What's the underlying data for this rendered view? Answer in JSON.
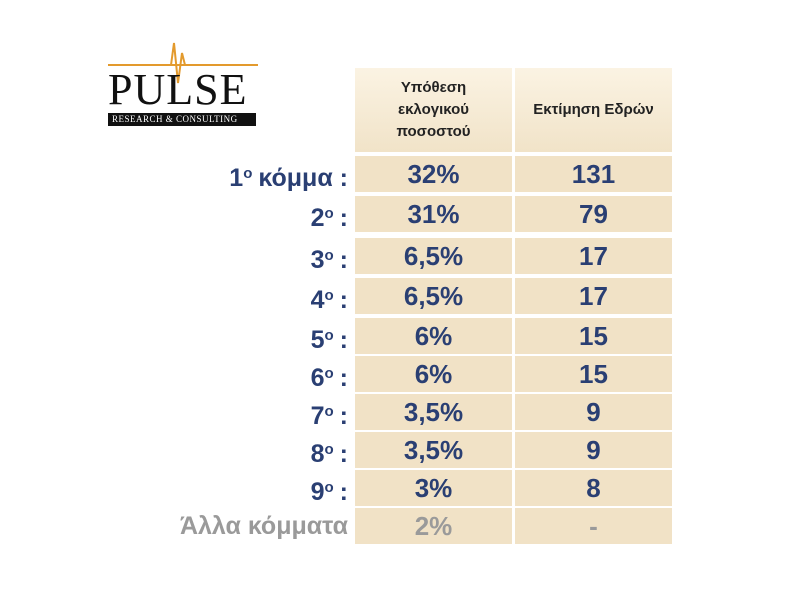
{
  "logo": {
    "name": "PULSE",
    "tagline": "RESEARCH & CONSULTING"
  },
  "table": {
    "headers": [
      "Υπόθεση εκλογικού ποσοστού",
      "Εκτίμηση Εδρών"
    ],
    "rows": [
      {
        "label": {
          "num": "1",
          "sup": "ο",
          "rest": "κόμμα :"
        },
        "cells": [
          "32%",
          "131"
        ]
      },
      {
        "label": {
          "num": "2",
          "sup": "ο",
          "rest": ":"
        },
        "cells": [
          "31%",
          "79"
        ]
      },
      {
        "label": {
          "num": "3",
          "sup": "ο",
          "rest": ":"
        },
        "cells": [
          "6,5%",
          "17"
        ]
      },
      {
        "label": {
          "num": "4",
          "sup": "ο",
          "rest": ":"
        },
        "cells": [
          "6,5%",
          "17"
        ]
      },
      {
        "label": {
          "num": "5",
          "sup": "ο",
          "rest": ":"
        },
        "cells": [
          "6%",
          "15"
        ]
      },
      {
        "label": {
          "num": "6",
          "sup": "ο",
          "rest": ":"
        },
        "cells": [
          "6%",
          "15"
        ]
      },
      {
        "label": {
          "num": "7",
          "sup": "ο",
          "rest": ":"
        },
        "cells": [
          "3,5%",
          "9"
        ]
      },
      {
        "label": {
          "num": "8",
          "sup": "ο",
          "rest": ":"
        },
        "cells": [
          "3,5%",
          "9"
        ]
      },
      {
        "label": {
          "num": "9",
          "sup": "ο",
          "rest": ":"
        },
        "cells": [
          "3%",
          "8"
        ]
      },
      {
        "label": {
          "text": "Άλλα κόμματα"
        },
        "cells": [
          "2%",
          "-"
        ],
        "muted": true
      }
    ]
  }
}
